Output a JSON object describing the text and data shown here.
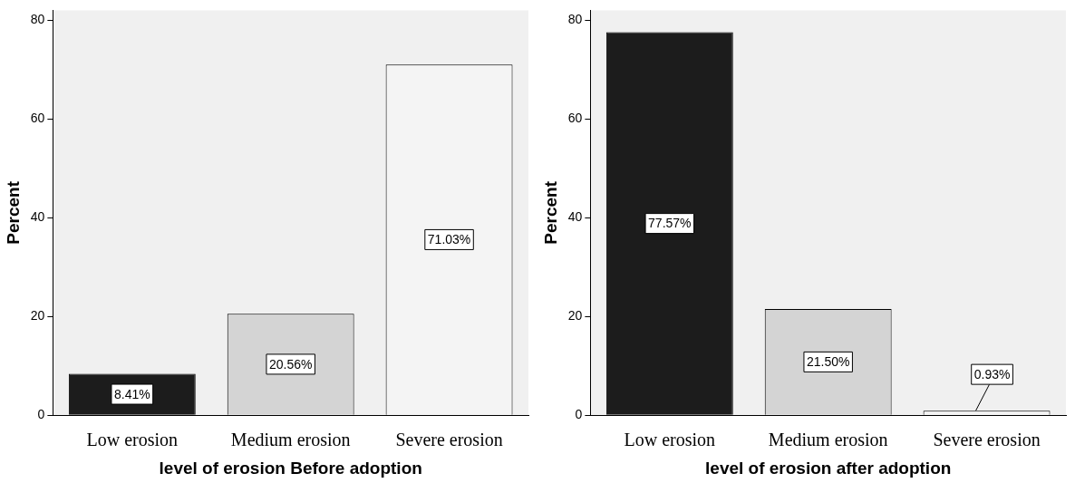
{
  "chart_data": [
    {
      "type": "bar",
      "categories": [
        "Low erosion",
        "Medium erosion",
        "Severe erosion"
      ],
      "values": [
        8.41,
        20.56,
        71.03
      ],
      "colors": [
        "#1c1c1c",
        "#d4d4d4",
        "#f4f4f4"
      ],
      "value_labels": [
        "8.41%",
        "20.56%",
        "71.03%"
      ],
      "xlabel": "level of erosion Before adoption",
      "ylabel": "Percent",
      "ylim": [
        0,
        82
      ],
      "yticks": [
        0,
        20,
        40,
        60,
        80
      ]
    },
    {
      "type": "bar",
      "categories": [
        "Low erosion",
        "Medium erosion",
        "Severe erosion"
      ],
      "values": [
        77.57,
        21.5,
        0.93
      ],
      "colors": [
        "#1c1c1c",
        "#d4d4d4",
        "#f4f4f4"
      ],
      "value_labels": [
        "77.57%",
        "21.50%",
        "0.93%"
      ],
      "xlabel": "level of erosion after adoption",
      "ylabel": "Percent",
      "ylim": [
        0,
        82
      ],
      "yticks": [
        0,
        20,
        40,
        60,
        80
      ]
    }
  ]
}
